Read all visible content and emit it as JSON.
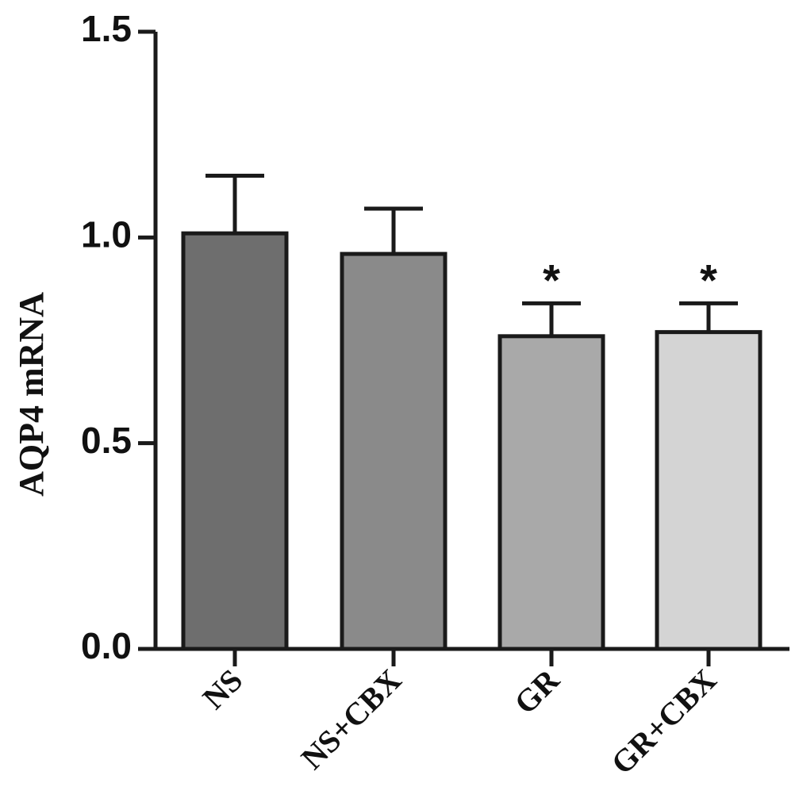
{
  "chart_data": {
    "type": "bar",
    "title": "",
    "xlabel": "",
    "ylabel": "AQP4 mRNA",
    "categories": [
      "NS",
      "NS+CBX",
      "GR",
      "GR+CBX"
    ],
    "values": [
      1.01,
      0.96,
      0.76,
      0.77
    ],
    "errors": [
      0.14,
      0.11,
      0.08,
      0.07
    ],
    "significance": [
      "",
      "",
      "*",
      "*"
    ],
    "colors": [
      "#6e6e6e",
      "#8a8a8a",
      "#a9a9a9",
      "#d4d4d4"
    ],
    "ylim": [
      0,
      1.5
    ],
    "yticks": [
      "0.0",
      "0.5",
      "1.0",
      "1.5"
    ],
    "grid": false,
    "legend": "none"
  }
}
